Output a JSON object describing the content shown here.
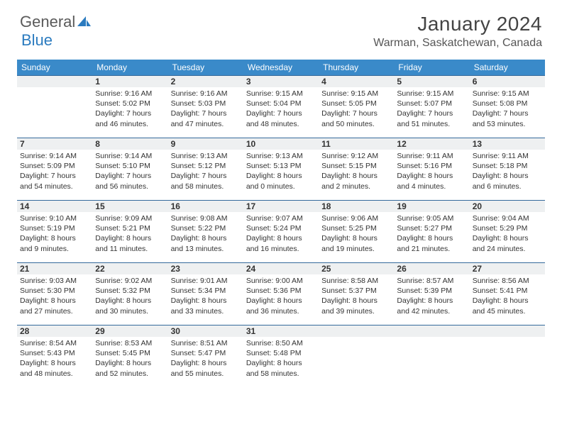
{
  "logo": {
    "text1": "General",
    "text2": "Blue"
  },
  "title": "January 2024",
  "location": "Warman, Saskatchewan, Canada",
  "colors": {
    "header_bg": "#3a8ac9",
    "header_text": "#ffffff",
    "daynum_bg": "#eef0f1",
    "daynum_border": "#346a9c",
    "body_text": "#333333",
    "logo_gray": "#5a5a5a",
    "logo_blue": "#2b7bbf"
  },
  "day_headers": [
    "Sunday",
    "Monday",
    "Tuesday",
    "Wednesday",
    "Thursday",
    "Friday",
    "Saturday"
  ],
  "weeks": [
    [
      {
        "n": "",
        "sr": "",
        "ss": "",
        "dl": ""
      },
      {
        "n": "1",
        "sr": "Sunrise: 9:16 AM",
        "ss": "Sunset: 5:02 PM",
        "dl": "Daylight: 7 hours and 46 minutes."
      },
      {
        "n": "2",
        "sr": "Sunrise: 9:16 AM",
        "ss": "Sunset: 5:03 PM",
        "dl": "Daylight: 7 hours and 47 minutes."
      },
      {
        "n": "3",
        "sr": "Sunrise: 9:15 AM",
        "ss": "Sunset: 5:04 PM",
        "dl": "Daylight: 7 hours and 48 minutes."
      },
      {
        "n": "4",
        "sr": "Sunrise: 9:15 AM",
        "ss": "Sunset: 5:05 PM",
        "dl": "Daylight: 7 hours and 50 minutes."
      },
      {
        "n": "5",
        "sr": "Sunrise: 9:15 AM",
        "ss": "Sunset: 5:07 PM",
        "dl": "Daylight: 7 hours and 51 minutes."
      },
      {
        "n": "6",
        "sr": "Sunrise: 9:15 AM",
        "ss": "Sunset: 5:08 PM",
        "dl": "Daylight: 7 hours and 53 minutes."
      }
    ],
    [
      {
        "n": "7",
        "sr": "Sunrise: 9:14 AM",
        "ss": "Sunset: 5:09 PM",
        "dl": "Daylight: 7 hours and 54 minutes."
      },
      {
        "n": "8",
        "sr": "Sunrise: 9:14 AM",
        "ss": "Sunset: 5:10 PM",
        "dl": "Daylight: 7 hours and 56 minutes."
      },
      {
        "n": "9",
        "sr": "Sunrise: 9:13 AM",
        "ss": "Sunset: 5:12 PM",
        "dl": "Daylight: 7 hours and 58 minutes."
      },
      {
        "n": "10",
        "sr": "Sunrise: 9:13 AM",
        "ss": "Sunset: 5:13 PM",
        "dl": "Daylight: 8 hours and 0 minutes."
      },
      {
        "n": "11",
        "sr": "Sunrise: 9:12 AM",
        "ss": "Sunset: 5:15 PM",
        "dl": "Daylight: 8 hours and 2 minutes."
      },
      {
        "n": "12",
        "sr": "Sunrise: 9:11 AM",
        "ss": "Sunset: 5:16 PM",
        "dl": "Daylight: 8 hours and 4 minutes."
      },
      {
        "n": "13",
        "sr": "Sunrise: 9:11 AM",
        "ss": "Sunset: 5:18 PM",
        "dl": "Daylight: 8 hours and 6 minutes."
      }
    ],
    [
      {
        "n": "14",
        "sr": "Sunrise: 9:10 AM",
        "ss": "Sunset: 5:19 PM",
        "dl": "Daylight: 8 hours and 9 minutes."
      },
      {
        "n": "15",
        "sr": "Sunrise: 9:09 AM",
        "ss": "Sunset: 5:21 PM",
        "dl": "Daylight: 8 hours and 11 minutes."
      },
      {
        "n": "16",
        "sr": "Sunrise: 9:08 AM",
        "ss": "Sunset: 5:22 PM",
        "dl": "Daylight: 8 hours and 13 minutes."
      },
      {
        "n": "17",
        "sr": "Sunrise: 9:07 AM",
        "ss": "Sunset: 5:24 PM",
        "dl": "Daylight: 8 hours and 16 minutes."
      },
      {
        "n": "18",
        "sr": "Sunrise: 9:06 AM",
        "ss": "Sunset: 5:25 PM",
        "dl": "Daylight: 8 hours and 19 minutes."
      },
      {
        "n": "19",
        "sr": "Sunrise: 9:05 AM",
        "ss": "Sunset: 5:27 PM",
        "dl": "Daylight: 8 hours and 21 minutes."
      },
      {
        "n": "20",
        "sr": "Sunrise: 9:04 AM",
        "ss": "Sunset: 5:29 PM",
        "dl": "Daylight: 8 hours and 24 minutes."
      }
    ],
    [
      {
        "n": "21",
        "sr": "Sunrise: 9:03 AM",
        "ss": "Sunset: 5:30 PM",
        "dl": "Daylight: 8 hours and 27 minutes."
      },
      {
        "n": "22",
        "sr": "Sunrise: 9:02 AM",
        "ss": "Sunset: 5:32 PM",
        "dl": "Daylight: 8 hours and 30 minutes."
      },
      {
        "n": "23",
        "sr": "Sunrise: 9:01 AM",
        "ss": "Sunset: 5:34 PM",
        "dl": "Daylight: 8 hours and 33 minutes."
      },
      {
        "n": "24",
        "sr": "Sunrise: 9:00 AM",
        "ss": "Sunset: 5:36 PM",
        "dl": "Daylight: 8 hours and 36 minutes."
      },
      {
        "n": "25",
        "sr": "Sunrise: 8:58 AM",
        "ss": "Sunset: 5:37 PM",
        "dl": "Daylight: 8 hours and 39 minutes."
      },
      {
        "n": "26",
        "sr": "Sunrise: 8:57 AM",
        "ss": "Sunset: 5:39 PM",
        "dl": "Daylight: 8 hours and 42 minutes."
      },
      {
        "n": "27",
        "sr": "Sunrise: 8:56 AM",
        "ss": "Sunset: 5:41 PM",
        "dl": "Daylight: 8 hours and 45 minutes."
      }
    ],
    [
      {
        "n": "28",
        "sr": "Sunrise: 8:54 AM",
        "ss": "Sunset: 5:43 PM",
        "dl": "Daylight: 8 hours and 48 minutes."
      },
      {
        "n": "29",
        "sr": "Sunrise: 8:53 AM",
        "ss": "Sunset: 5:45 PM",
        "dl": "Daylight: 8 hours and 52 minutes."
      },
      {
        "n": "30",
        "sr": "Sunrise: 8:51 AM",
        "ss": "Sunset: 5:47 PM",
        "dl": "Daylight: 8 hours and 55 minutes."
      },
      {
        "n": "31",
        "sr": "Sunrise: 8:50 AM",
        "ss": "Sunset: 5:48 PM",
        "dl": "Daylight: 8 hours and 58 minutes."
      },
      {
        "n": "",
        "sr": "",
        "ss": "",
        "dl": ""
      },
      {
        "n": "",
        "sr": "",
        "ss": "",
        "dl": ""
      },
      {
        "n": "",
        "sr": "",
        "ss": "",
        "dl": ""
      }
    ]
  ]
}
